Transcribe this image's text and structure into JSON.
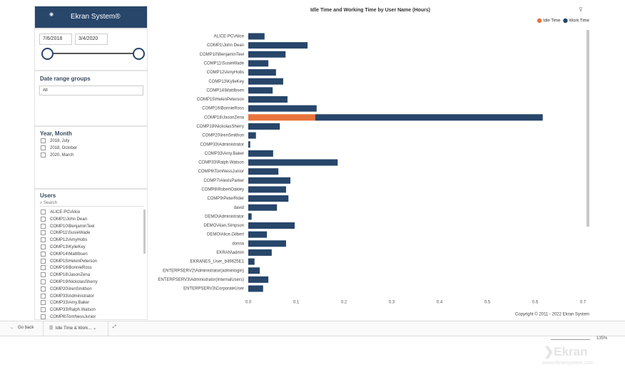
{
  "sidebar": {
    "logo": "Ekran System®",
    "date_start": "7/6/2018",
    "date_end": "3/4/2020",
    "date_range_title": "Date range groups",
    "date_range_value": "All",
    "year_month_title": "Year, Month",
    "year_month_items": [
      "2018, July",
      "2018, October",
      "2020, March"
    ],
    "users_title": "Users",
    "search": "Search",
    "users": [
      "ALICE-PC\\Alice",
      "COMP1\\John Dean",
      "COMP10\\BenjaminTeel",
      "COMP11\\SusieWade",
      "COMP12\\AmyHobs",
      "COMP13\\KylieKey",
      "COMP14\\MattIbsen",
      "COMP15\\HelenPeterson",
      "COMP16\\BonnieRoss",
      "COMP18\\JasonZena",
      "COMP19\\NickolasSherry",
      "COMP20\\IrenSmithon",
      "COMP33\\Administrator",
      "COMP33\\Amy.Baker",
      "COMP33\\Ralph.Watson",
      "COMP6\\TomNessJunior"
    ]
  },
  "chart": {
    "type": "bar",
    "title": "Idle Time and Working Time by User Name (Hours)",
    "categories": [
      "ALICE-PC\\Alice",
      "COMP1\\John Dean",
      "COMP10\\BenjaminTeel",
      "COMP11\\SusieWade",
      "COMP12\\AmyHobs",
      "COMP13\\KylieKey",
      "COMP14\\MattIbsen",
      "COMP15\\HelenPeterson",
      "COMP16\\BonnieRoss",
      "COMP18\\JasonZena",
      "COMP19\\NickolasSherry",
      "COMP20\\IrenSmithon",
      "COMP33\\Administrator",
      "COMP33\\Amy.Baker",
      "COMP33\\Ralph.Watson",
      "COMP6\\TomNessJunior",
      "COMP7\\AlexisParker",
      "COMP8\\RobertOakley",
      "COMP9\\PeterRider",
      "david",
      "DEMO\\Administrator",
      "DEMO\\Alan.Simpson",
      "DEMO\\Alice.Gilbert",
      "donna",
      "EKRAN\\admin",
      "EKRANES_User_b49625E1",
      "ENTERPSERV2\\Administrator(adminlogin)",
      "ENTERPSERV3\\Administrator(InternalUsers)",
      "ENTERPSERV3\\CorporateUser"
    ],
    "series": [
      {
        "name": "Idle Time",
        "color": "#e8743b",
        "values": [
          null,
          null,
          null,
          null,
          null,
          null,
          null,
          null,
          null,
          0.14,
          null,
          null,
          null,
          null,
          null,
          null,
          null,
          null,
          null,
          null,
          null,
          null,
          null,
          null,
          null,
          null,
          null,
          null,
          null
        ]
      },
      {
        "name": "Work Time",
        "color": "#27466a",
        "values": [
          0.034,
          0.124,
          0.078,
          0.042,
          0.058,
          0.073,
          0.051,
          0.082,
          0.143,
          0.476,
          0.066,
          0.016,
          0.004,
          0.052,
          0.187,
          0.063,
          0.088,
          0.079,
          0.084,
          0.06,
          0.007,
          0.097,
          0.039,
          0.079,
          0.049,
          0.013,
          0.024,
          0.042,
          0.031
        ]
      }
    ],
    "xlim": [
      0,
      0.7
    ],
    "xticks": [
      {
        "value": 0,
        "label": "0.0"
      },
      0.1,
      0.2,
      0.3,
      0.4,
      0.5,
      0.6,
      0.7
    ],
    "legend": "top-right",
    "copyright": "Copyright © 2011 - 2022 Ekran System"
  },
  "bottom_bar": {
    "back": "Go back",
    "page_tab": "Idle Time & Work...",
    "zoom": "135%"
  },
  "watermark": {
    "brand": "Ekran",
    "url": "www.ekransystem.com"
  }
}
